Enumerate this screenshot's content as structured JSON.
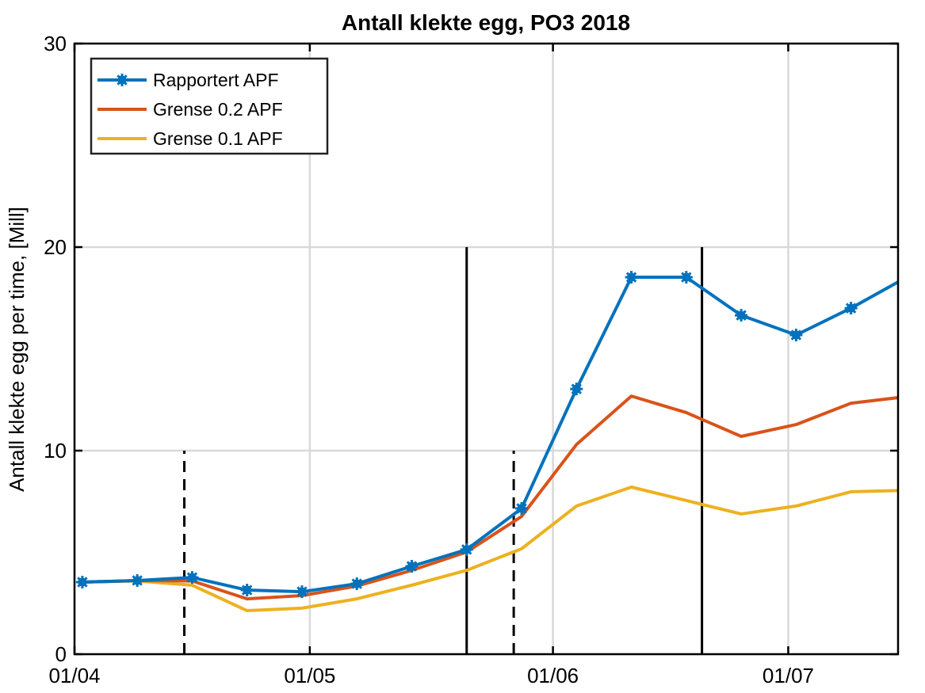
{
  "chart_data": {
    "type": "line",
    "title": "Antall klekte egg, PO3 2018",
    "xlabel": "",
    "ylabel": "Antall klekte egg per time, [Mill]",
    "ylim": [
      0,
      30
    ],
    "xlim_days_from_apr1": [
      0,
      105
    ],
    "yticks": [
      0,
      10,
      20,
      30
    ],
    "ytick_labels": [
      "0",
      "10",
      "20",
      "30"
    ],
    "xticks_days": [
      0,
      30,
      61,
      91
    ],
    "xtick_labels": [
      "01/04",
      "01/05",
      "01/06",
      "01/07"
    ],
    "grid": true,
    "legend_position": "top-left",
    "x_days": [
      1,
      8,
      15,
      22,
      29,
      36,
      43,
      50,
      57,
      64,
      71,
      78,
      85,
      92,
      99,
      106
    ],
    "series": [
      {
        "name": "Rapportert APF",
        "color": "#0072BD",
        "marker": "asterisk",
        "values": [
          3.54,
          3.62,
          3.77,
          3.15,
          3.07,
          3.46,
          4.32,
          5.14,
          7.16,
          13.03,
          18.52,
          18.52,
          16.65,
          15.68,
          17.0,
          18.5
        ]
      },
      {
        "name": "Grense 0.2 APF",
        "color": "#D95319",
        "marker": "none",
        "values": [
          3.54,
          3.62,
          3.6,
          2.72,
          2.88,
          3.35,
          4.12,
          5.02,
          6.77,
          10.3,
          12.68,
          11.87,
          10.7,
          11.28,
          12.33,
          12.65
        ]
      },
      {
        "name": "Grense 0.1 APF",
        "color": "#EDB120",
        "marker": "none",
        "values": [
          3.54,
          3.6,
          3.39,
          2.14,
          2.26,
          2.72,
          3.39,
          4.12,
          5.18,
          7.28,
          8.21,
          7.55,
          6.89,
          7.28,
          7.98,
          8.05
        ]
      }
    ],
    "vertical_lines": [
      {
        "day": 14,
        "style": "dashed",
        "ymax": 10
      },
      {
        "day": 56,
        "style": "dashed",
        "ymax": 10
      },
      {
        "day": 50,
        "style": "solid",
        "ymax": 20
      },
      {
        "day": 80,
        "style": "solid",
        "ymax": 20
      }
    ]
  }
}
